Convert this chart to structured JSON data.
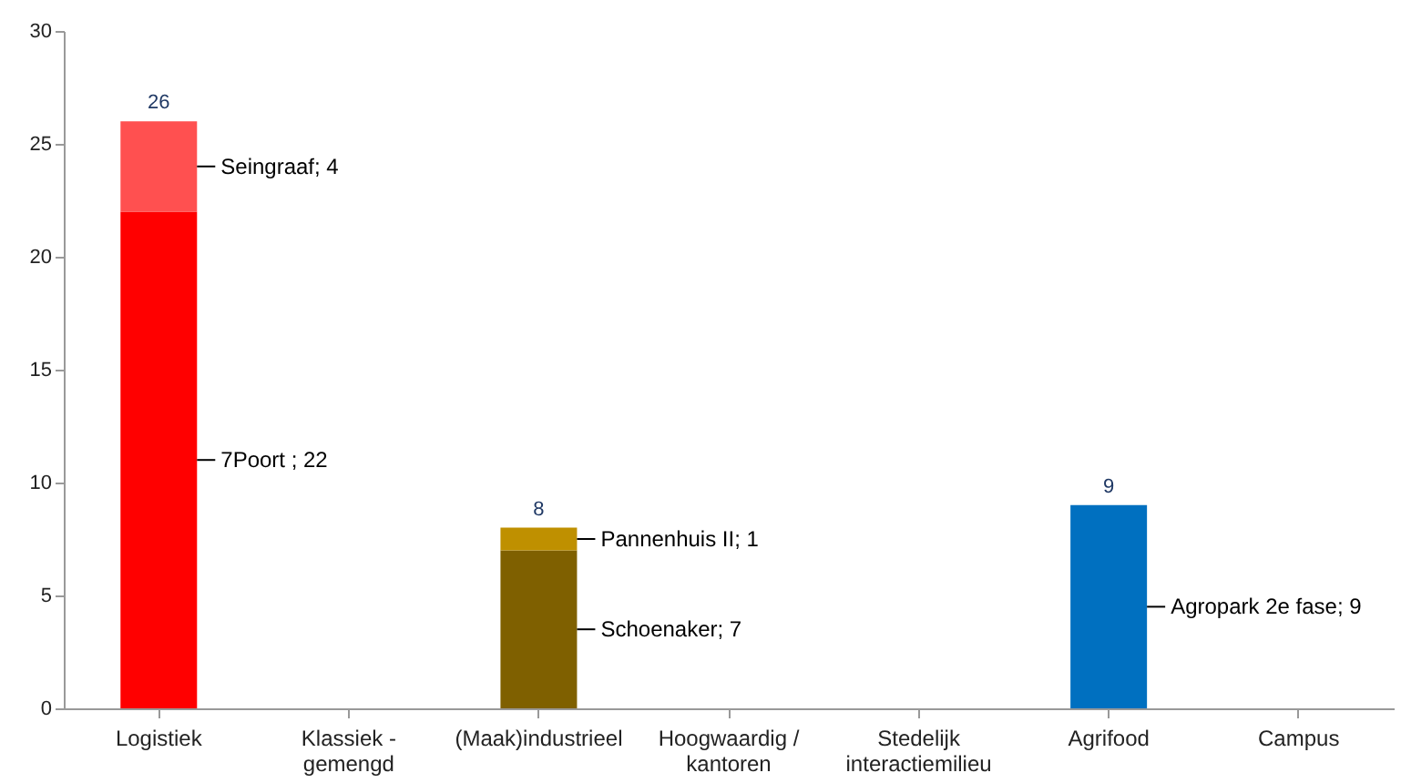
{
  "chart_data": {
    "type": "bar",
    "stacked": true,
    "categories": [
      "Logistiek",
      "Klassiek - gemengd",
      "(Maak)industrieel",
      "Hoogwaardig / kantoren",
      "Stedelijk interactiemilieu",
      "Agrifood",
      "Campus"
    ],
    "series": [
      {
        "values": [
          22,
          null,
          7,
          null,
          null,
          9,
          null
        ],
        "colors": [
          "#ff0000",
          null,
          "#7f6000",
          null,
          null,
          "#0070c0",
          null
        ],
        "value_labels": [
          "7Poort ; 22",
          null,
          "Schoenaker; 7",
          null,
          null,
          "Agropark 2e fase; 9",
          null
        ]
      },
      {
        "values": [
          4,
          null,
          1,
          null,
          null,
          null,
          null
        ],
        "colors": [
          "#ff5050",
          null,
          "#bf9000",
          null,
          null,
          null,
          null
        ],
        "value_labels": [
          "Seingraaf; 4",
          null,
          "Pannenhuis II; 1",
          null,
          null,
          null,
          null
        ]
      }
    ],
    "totals": [
      "26",
      null,
      "8",
      null,
      null,
      "9",
      null
    ],
    "ylim": [
      0,
      30
    ],
    "yticks": [
      0,
      5,
      10,
      15,
      20,
      25,
      30
    ],
    "grid": false
  }
}
